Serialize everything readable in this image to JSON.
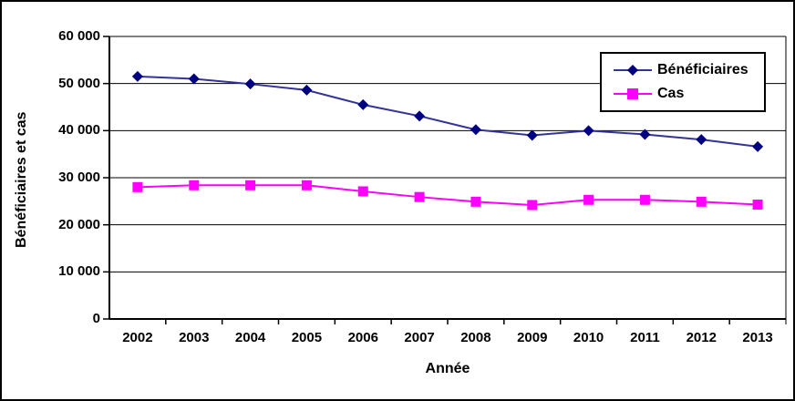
{
  "frame": {
    "background_color": "#FFFFFF",
    "border_color": "#000000"
  },
  "chart_data": {
    "type": "line",
    "title": "",
    "xlabel": "Année",
    "ylabel": "Bénéficiaires et cas",
    "categories": [
      "2002",
      "2003",
      "2004",
      "2005",
      "2006",
      "2007",
      "2008",
      "2009",
      "2010",
      "2011",
      "2012",
      "2013"
    ],
    "y_ticks": [
      "60 000",
      "50 000",
      "40 000",
      "30 000",
      "20 000",
      "10 000",
      "0"
    ],
    "ylim": [
      0,
      60000
    ],
    "grid": "horizontal",
    "legend_position": "top-right-inside",
    "axis_color": "#000000",
    "series": [
      {
        "name": "Bénéficiaires",
        "marker": "diamond",
        "line_color": "#333399",
        "marker_color": "#000080",
        "values": [
          51500,
          51000,
          49900,
          48600,
          45500,
          43100,
          40200,
          39000,
          40000,
          39200,
          38100,
          36600
        ]
      },
      {
        "name": "Cas",
        "marker": "square",
        "line_color": "#FF00FF",
        "marker_color": "#FF00FF",
        "values": [
          28000,
          28400,
          28400,
          28400,
          27100,
          25900,
          24900,
          24200,
          25300,
          25300,
          24900,
          24300
        ]
      }
    ]
  }
}
